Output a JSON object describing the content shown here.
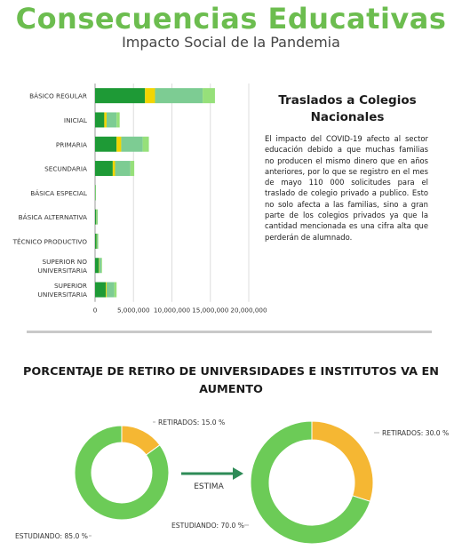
{
  "header": {
    "title": "Consecuencias Educativas",
    "subtitle": "Impacto Social de la Pandemia"
  },
  "side_panel": {
    "title": "Traslados a Colegios Nacionales",
    "body": "El impacto del COVID-19 afecto al sector educación debido a que muchas familias no producen el mismo dinero que en años anteriores, por lo que se registro en el mes de mayo 110 000 solicitudes para el traslado de colegio privado a publico. Esto no solo afecta a las familias, sino a gran parte de los colegios privados ya que la cantidad mencionada es una cifra alta que perderán de alumnado."
  },
  "section": {
    "title": "PORCENTAJE DE RETIRO DE UNIVERSIDADES E INSTITUTOS VA EN AUMENTO",
    "arrow_label": "ESTIMA"
  },
  "colors": {
    "title_green": "#6cbd4f",
    "dark_green": "#1e9a36",
    "yellow": "#f2d500",
    "mid_green": "#7dcc93",
    "light_green": "#96e07a",
    "donut_green": "#6ccb57",
    "donut_orange": "#f5b733",
    "arrow": "#2e8b57"
  },
  "chart_data": [
    {
      "type": "bar",
      "orientation": "horizontal",
      "stacked": true,
      "categories": [
        "BÁSICO REGULAR",
        "INICIAL",
        "PRIMARIA",
        "SECUNDARIA",
        "BÁSICA ESPECIAL",
        "BÁSICA ALTERNATIVA",
        "TÉCNICO PRODUCTIVO",
        "SUPERIOR NO UNIVERSITARIA",
        "SUPERIOR UNIVERSITARIA"
      ],
      "series": [
        {
          "color": "#1e9a36",
          "values": [
            6500000,
            1200000,
            2800000,
            2300000,
            30000,
            120000,
            180000,
            500000,
            1400000
          ]
        },
        {
          "color": "#f2d500",
          "values": [
            1300000,
            300000,
            600000,
            300000,
            0,
            20000,
            20000,
            50000,
            100000
          ]
        },
        {
          "color": "#7dcc93",
          "values": [
            6200000,
            1300000,
            2800000,
            2000000,
            20000,
            150000,
            150000,
            250000,
            1000000
          ]
        },
        {
          "color": "#96e07a",
          "values": [
            1600000,
            400000,
            800000,
            500000,
            10000,
            60000,
            60000,
            100000,
            300000
          ]
        }
      ],
      "xlim": [
        0,
        20000000
      ],
      "xticks": [
        "0",
        "5,000,000",
        "10,000,000",
        "15,000,000",
        "20,000,000"
      ],
      "grid": true
    },
    {
      "type": "pie",
      "donut": true,
      "slices": [
        {
          "label": "RETIRADOS: 15.0 %",
          "value": 15.0,
          "color": "#f5b733"
        },
        {
          "label": "ESTUDIANDO: 85.0 %",
          "value": 85.0,
          "color": "#6ccb57"
        }
      ]
    },
    {
      "type": "pie",
      "donut": true,
      "slices": [
        {
          "label": "RETIRADOS: 30.0 %",
          "value": 30.0,
          "color": "#f5b733"
        },
        {
          "label": "ESTUDIANDO: 70.0 %",
          "value": 70.0,
          "color": "#6ccb57"
        }
      ]
    }
  ]
}
